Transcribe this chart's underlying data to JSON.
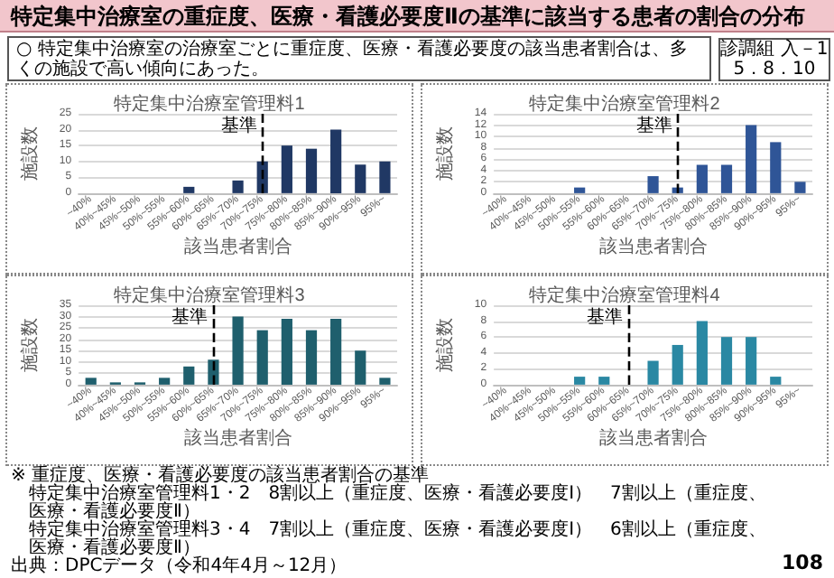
{
  "chart_data": [
    {
      "type": "other",
      "title": "特定集中治療室の重症度、医療・看護必要度Ⅱの基準に該当する患者の割合の分布",
      "annotations": [
        "○ 特定集中治療室の治療室ごとに重症度、医療・看護必要度の該当患者割合は、多くの施設で高い傾向にあった。",
        "診調組 入－1",
        "5．8．10",
        "※ 重症度、医療・看護必要度の該当患者割合の基準",
        "特定集中治療室管理料1・2　8割以上（重症度、医療・看護必要度Ⅰ）　7割以上（重症度、医療・看護必要度Ⅱ）",
        "特定集中治療室管理料3・4　7割以上（重症度、医療・看護必要度Ⅰ）　6割以上（重症度、医療・看護必要度Ⅱ）",
        "出典：DPCデータ（令和4年4月～12月）",
        "108"
      ]
    },
    {
      "type": "bar",
      "title": "特定集中治療室管理料1",
      "xlabel": "該当患者割合",
      "ylabel": "施設数",
      "categories": [
        "~40%",
        "40%~45%",
        "45%~50%",
        "50%~55%",
        "55%~60%",
        "60%~65%",
        "65%~70%",
        "70%~75%",
        "75%~80%",
        "80%~85%",
        "85%~90%",
        "90%~95%",
        "95%~"
      ],
      "values": [
        0,
        0,
        0,
        0,
        2,
        0,
        4,
        10,
        15,
        14,
        20,
        9,
        10
      ],
      "color": "#203864",
      "ylim": [
        0,
        25
      ],
      "yticks": [
        0,
        5,
        10,
        15,
        20,
        25
      ],
      "grid": "y",
      "ref_lines": [
        {
          "axis": "x",
          "value": "70%~75%",
          "label": "基準",
          "line_style": "dashed",
          "color": "#000000"
        }
      ]
    },
    {
      "type": "bar",
      "title": "特定集中治療室管理料2",
      "xlabel": "該当患者割合",
      "ylabel": "施設数",
      "categories": [
        "~40%",
        "40%~45%",
        "45%~50%",
        "50%~55%",
        "55%~60%",
        "60%~65%",
        "65%~70%",
        "70%~75%",
        "75%~80%",
        "80%~85%",
        "85%~90%",
        "90%~95%",
        "95%~"
      ],
      "values": [
        0,
        0,
        0,
        1,
        0,
        0,
        3,
        1,
        5,
        5,
        12,
        9,
        2
      ],
      "color": "#2f5597",
      "ylim": [
        0,
        14
      ],
      "yticks": [
        0,
        2,
        4,
        6,
        8,
        10,
        12,
        14
      ],
      "grid": "y",
      "ref_lines": [
        {
          "axis": "x",
          "value": "70%~75%",
          "label": "基準",
          "line_style": "dashed",
          "color": "#000000"
        }
      ]
    },
    {
      "type": "bar",
      "title": "特定集中治療室管理料3",
      "xlabel": "該当患者割合",
      "ylabel": "施設数",
      "categories": [
        "~40%",
        "40%~45%",
        "45%~50%",
        "50%~55%",
        "55%~60%",
        "60%~65%",
        "65%~70%",
        "70%~75%",
        "75%~80%",
        "80%~85%",
        "85%~90%",
        "90%~95%",
        "95%~"
      ],
      "values": [
        3,
        1,
        1,
        3,
        8,
        11,
        30,
        24,
        29,
        24,
        29,
        15,
        3
      ],
      "color": "#1f5f6d",
      "ylim": [
        0,
        35
      ],
      "yticks": [
        0,
        5,
        10,
        15,
        20,
        25,
        30,
        35
      ],
      "grid": "y",
      "ref_lines": [
        {
          "axis": "x",
          "value": "60%~65%",
          "label": "基準",
          "line_style": "dashed",
          "color": "#000000"
        }
      ]
    },
    {
      "type": "bar",
      "title": "特定集中治療室管理料4",
      "xlabel": "該当患者割合",
      "ylabel": "施設数",
      "categories": [
        "~40%",
        "40%~45%",
        "45%~50%",
        "50%~55%",
        "55%~60%",
        "60%~65%",
        "65%~70%",
        "70%~75%",
        "75%~80%",
        "80%~85%",
        "85%~90%",
        "90%~95%",
        "95%~"
      ],
      "values": [
        0,
        0,
        0,
        1,
        1,
        0,
        3,
        5,
        8,
        6,
        6,
        1,
        0
      ],
      "color": "#2a88a3",
      "ylim": [
        0,
        10
      ],
      "yticks": [
        0,
        2,
        4,
        6,
        8,
        10
      ],
      "grid": "y",
      "ref_lines": [
        {
          "axis": "x",
          "value": "60%~65%",
          "label": "基準",
          "line_style": "dashed",
          "color": "#000000"
        }
      ]
    }
  ]
}
